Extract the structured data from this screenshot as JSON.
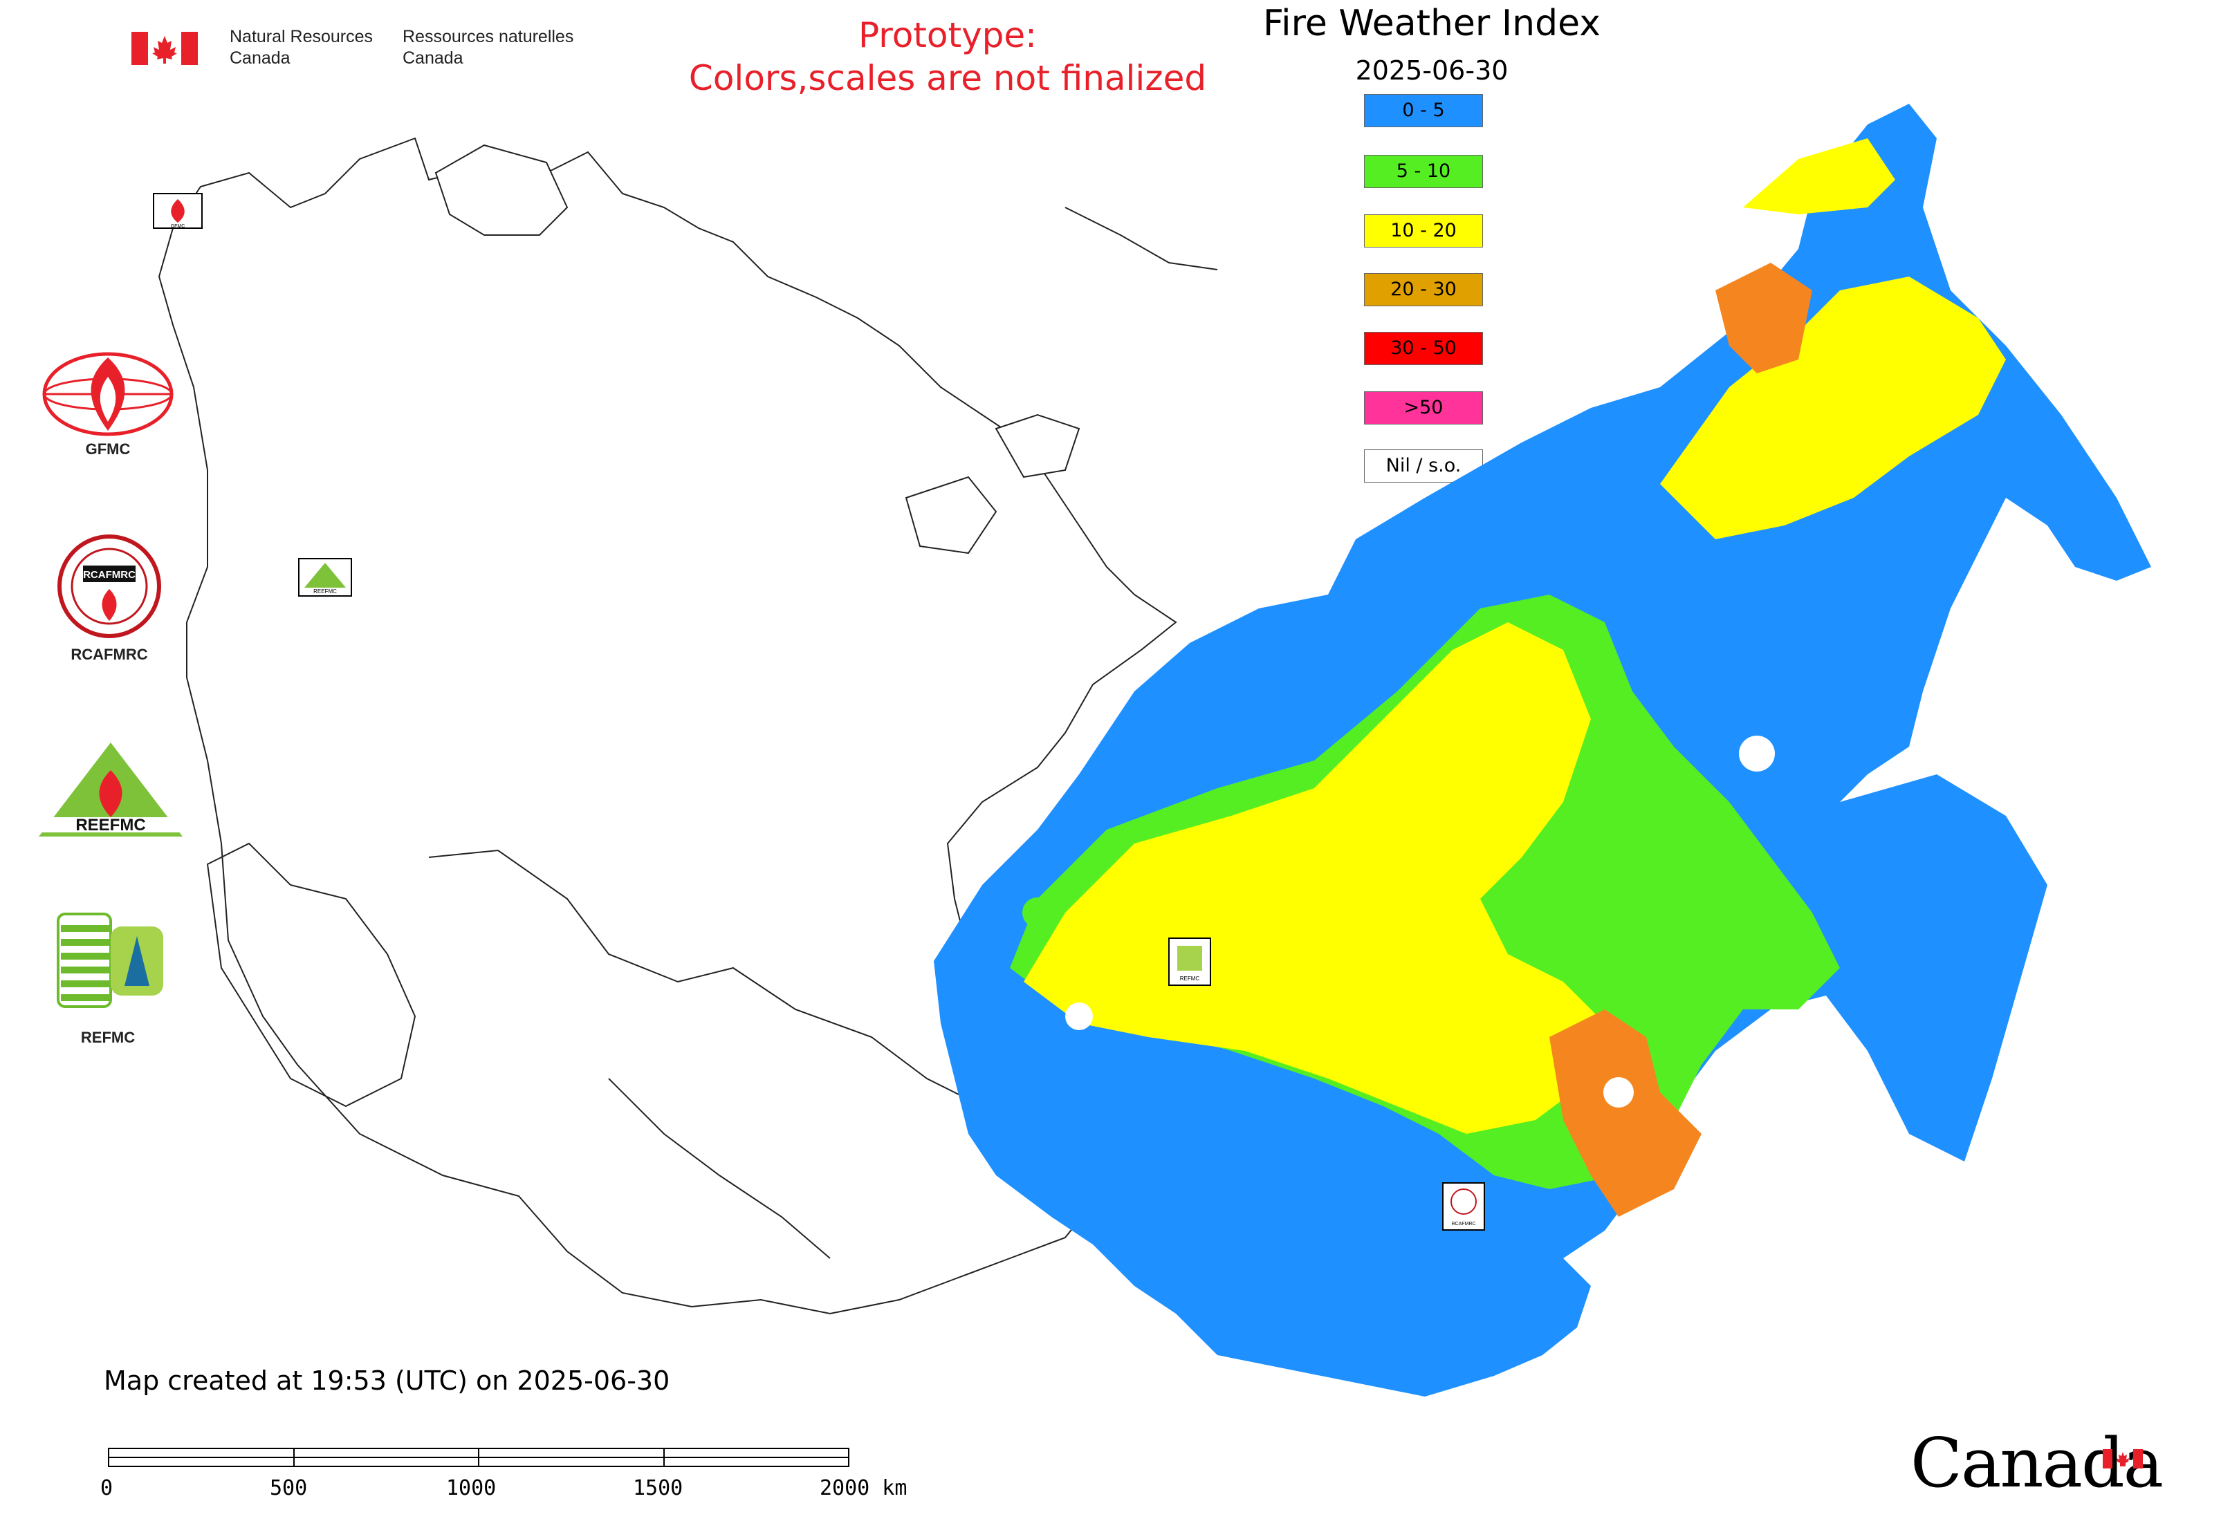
{
  "header": {
    "org_en_line1": "Natural Resources",
    "org_en_line2": "Canada",
    "org_fr_line1": "Ressources naturelles",
    "org_fr_line2": "Canada",
    "flag_color": "#e8202a"
  },
  "notice": {
    "line1": "Prototype:",
    "line2": "Colors,scales are not finalized",
    "color": "#e8202a"
  },
  "map": {
    "title": "Fire Weather Index",
    "date": "2025-06-30",
    "created_text": "Map created at 19:53 (UTC) on 2025-06-30"
  },
  "legend": {
    "items": [
      {
        "label": "0 - 5",
        "color": "#1e90ff"
      },
      {
        "label": "5 - 10",
        "color": "#55ee22"
      },
      {
        "label": "10 - 20",
        "color": "#ffff00"
      },
      {
        "label": "20 - 30",
        "color": "#e0a000"
      },
      {
        "label": "30 - 50",
        "color": "#ff0000"
      },
      {
        "label": ">50",
        "color": "#ff3399"
      },
      {
        "label": "Nil / s.o.",
        "color": "#ffffff"
      }
    ]
  },
  "organizations": [
    {
      "label": "GFMC",
      "icon": "gfmc-logo-icon"
    },
    {
      "label": "RCAFMRC",
      "icon": "rcafmrc-logo-icon"
    },
    {
      "label": "REFMC",
      "icon": "refmc-logo-icon"
    }
  ],
  "map_markers": {
    "gfmc": "GFMC",
    "refmc": "REFMC",
    "rcafmrc": "RCAFMRC",
    "reefmc": "REEFMC"
  },
  "scale_bar": {
    "ticks": [
      "0",
      "500",
      "1000",
      "1500",
      "2000 km"
    ]
  },
  "wordmark": {
    "text": "Canada",
    "flag_color": "#e8202a"
  },
  "colors": {
    "blue": "#1e90ff",
    "green": "#55ee22",
    "yellow": "#ffff00",
    "orange": "#f5861f",
    "red": "#ff0000"
  }
}
